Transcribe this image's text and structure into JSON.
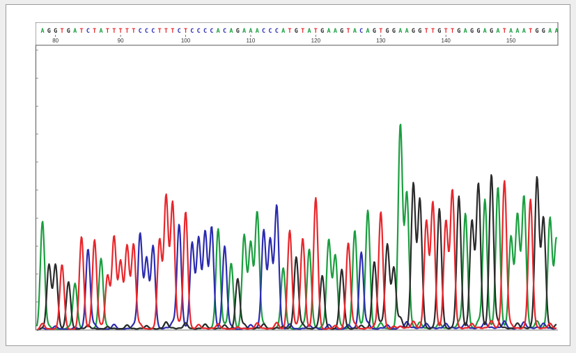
{
  "colors": {
    "A": "#1a9e3f",
    "C": "#2b2bb0",
    "G": "#2a2a2a",
    "T": "#e8262b"
  },
  "chart_data": {
    "type": "line",
    "sequence": "AGGTGATCTATTTTTCCCTTTCTCCCCACAGAAACCCATGTATGAAGTACAGTGGAAGGTTGTTGAGGAGATAAATGGAA",
    "positions": [
      80,
      90,
      100,
      110,
      120,
      130,
      140,
      150
    ],
    "position_start": 78,
    "ylim": [
      0,
      1800
    ],
    "peak_heights": [
      700,
      420,
      420,
      420,
      310,
      300,
      600,
      520,
      580,
      460,
      350,
      600,
      440,
      540,
      550,
      620,
      460,
      540,
      580,
      860,
      820,
      680,
      760,
      560,
      590,
      630,
      660,
      650,
      540,
      430,
      330,
      610,
      560,
      760,
      640,
      580,
      800,
      400,
      640,
      470,
      590,
      520,
      850,
      350,
      580,
      480,
      390,
      560,
      640,
      500,
      770,
      440,
      760,
      550,
      400,
      1320,
      880,
      940,
      840,
      700,
      820,
      780,
      700,
      900,
      860,
      750,
      700,
      940,
      840,
      1000,
      920,
      960,
      600,
      740,
      860,
      840,
      980,
      720,
      720,
      590
    ]
  }
}
